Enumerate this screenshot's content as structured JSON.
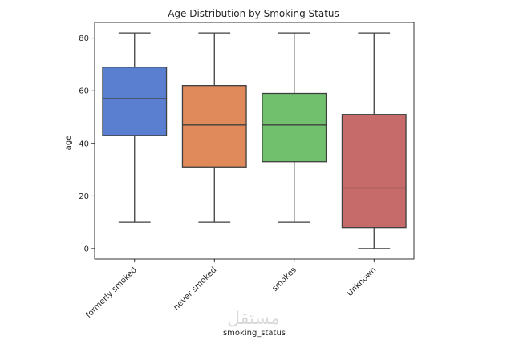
{
  "chart_data": {
    "type": "box",
    "title": "Age Distribution by Smoking Status",
    "xlabel": "smoking_status",
    "ylabel": "age",
    "ylim": [
      -4,
      86
    ],
    "yticks": [
      0,
      20,
      40,
      60,
      80
    ],
    "grid": false,
    "categories": [
      "formerly smoked",
      "never smoked",
      "smokes",
      "Unknown"
    ],
    "boxes": [
      {
        "category": "formerly smoked",
        "whisker_low": 10,
        "q1": 43,
        "median": 57,
        "q3": 69,
        "whisker_high": 82,
        "color": "#5b7fd0"
      },
      {
        "category": "never smoked",
        "whisker_low": 10,
        "q1": 31,
        "median": 47,
        "q3": 62,
        "whisker_high": 82,
        "color": "#e0895b"
      },
      {
        "category": "smokes",
        "whisker_low": 10,
        "q1": 33,
        "median": 47,
        "q3": 59,
        "whisker_high": 82,
        "color": "#70c06e"
      },
      {
        "category": "Unknown",
        "whisker_low": 0,
        "q1": 8,
        "median": 23,
        "q3": 51,
        "whisker_high": 82,
        "color": "#c76a6a"
      }
    ]
  },
  "watermark": "مستقل"
}
